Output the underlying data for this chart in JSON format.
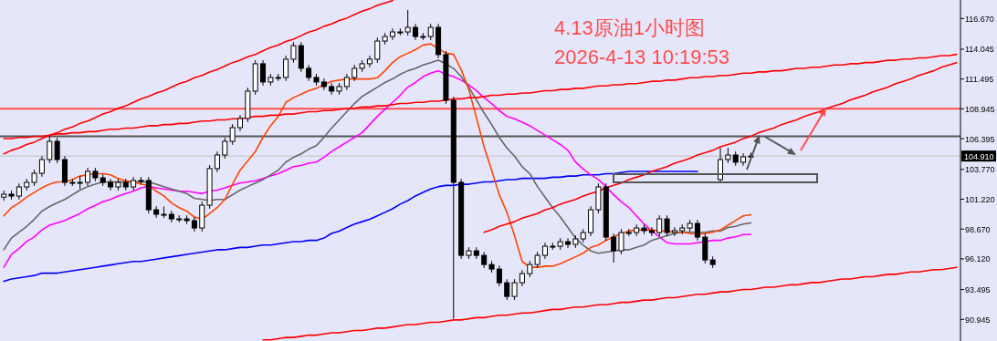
{
  "chart_data": {
    "type": "candlestick",
    "title": "4.13原油1小时图",
    "subtitle": "2026-4-13 10:19:53",
    "categories": [
      null,
      null,
      null,
      null,
      null,
      null,
      null,
      null,
      null,
      null,
      null,
      null,
      null,
      null,
      null,
      null,
      null,
      null,
      null,
      null,
      null,
      null,
      null,
      null,
      null,
      null,
      null,
      null,
      null,
      null,
      null,
      null,
      null,
      null,
      null,
      null,
      null,
      null,
      null,
      null,
      null,
      null,
      null,
      null,
      null,
      null,
      null,
      null,
      null,
      null,
      null,
      null,
      null,
      null,
      null,
      null,
      null,
      null,
      null,
      null,
      null,
      null,
      null,
      null,
      null,
      null,
      null,
      null,
      null,
      null,
      null,
      null,
      null,
      null,
      null,
      null,
      null,
      null,
      null,
      null,
      null,
      null,
      null,
      null,
      null,
      null,
      null,
      null,
      null,
      null,
      null,
      null,
      null,
      null,
      null,
      null,
      null,
      null,
      null,
      null,
      null,
      null,
      null,
      null,
      null,
      null,
      null,
      null,
      null,
      null,
      null,
      null,
      null,
      null,
      null,
      null,
      null,
      null,
      null,
      null,
      null,
      null,
      null,
      null,
      null,
      null
    ],
    "ohlc": [
      [
        101.4,
        101.95,
        101.1,
        101.65
      ],
      [
        101.65,
        101.95,
        101.19,
        101.49
      ],
      [
        101.49,
        102.57,
        101.19,
        102.27
      ],
      [
        102.27,
        102.96,
        101.97,
        102.66
      ],
      [
        102.66,
        103.74,
        102.36,
        103.44
      ],
      [
        103.44,
        104.91,
        103.14,
        104.61
      ],
      [
        104.61,
        106.6,
        104.31,
        106.17
      ],
      [
        106.17,
        106.47,
        104.31,
        104.61
      ],
      [
        104.61,
        104.91,
        102.36,
        102.66
      ],
      [
        102.66,
        102.96,
        102.36,
        102.66
      ],
      [
        102.66,
        103.2,
        102.1,
        102.66
      ],
      [
        102.66,
        103.9,
        102.36,
        103.6
      ],
      [
        103.6,
        103.9,
        102.75,
        103.05
      ],
      [
        103.05,
        103.35,
        102.36,
        102.66
      ],
      [
        102.66,
        102.96,
        101.97,
        102.27
      ],
      [
        102.27,
        102.96,
        101.97,
        102.66
      ],
      [
        102.66,
        102.96,
        101.97,
        102.27
      ],
      [
        102.27,
        103.12,
        101.97,
        102.82
      ],
      [
        102.82,
        103.12,
        102.52,
        102.82
      ],
      [
        102.82,
        103.12,
        100.02,
        100.32
      ],
      [
        100.32,
        100.62,
        99.63,
        99.93
      ],
      [
        99.93,
        100.6,
        99.63,
        99.93
      ],
      [
        99.93,
        100.23,
        99.24,
        99.54
      ],
      [
        99.54,
        99.84,
        99.24,
        99.54
      ],
      [
        99.54,
        99.84,
        99.09,
        99.39
      ],
      [
        99.39,
        99.69,
        98.46,
        98.76
      ],
      [
        98.76,
        101.01,
        98.46,
        100.71
      ],
      [
        100.71,
        104.14,
        100.41,
        103.84
      ],
      [
        103.84,
        105.3,
        103.54,
        105.0
      ],
      [
        105.0,
        106.47,
        104.7,
        106.17
      ],
      [
        106.17,
        107.64,
        105.87,
        107.34
      ],
      [
        107.34,
        108.42,
        107.04,
        108.12
      ],
      [
        108.12,
        110.76,
        107.82,
        110.46
      ],
      [
        110.46,
        113.1,
        110.16,
        112.8
      ],
      [
        112.8,
        113.1,
        110.94,
        111.24
      ],
      [
        111.24,
        111.93,
        110.94,
        111.63
      ],
      [
        111.63,
        111.93,
        111.33,
        111.63
      ],
      [
        111.63,
        113.49,
        111.33,
        113.19
      ],
      [
        113.19,
        114.65,
        112.89,
        114.35
      ],
      [
        114.35,
        114.65,
        112.11,
        112.41
      ],
      [
        112.41,
        112.71,
        111.33,
        111.63
      ],
      [
        111.63,
        111.93,
        110.94,
        111.24
      ],
      [
        111.24,
        111.54,
        110.55,
        110.85
      ],
      [
        110.85,
        111.15,
        110.16,
        110.46
      ],
      [
        110.46,
        111.15,
        110.16,
        110.85
      ],
      [
        110.85,
        111.93,
        110.55,
        111.63
      ],
      [
        111.63,
        112.71,
        111.33,
        112.41
      ],
      [
        112.41,
        113.1,
        112.11,
        112.8
      ],
      [
        112.8,
        113.49,
        112.5,
        113.19
      ],
      [
        113.19,
        115.04,
        112.89,
        114.74
      ],
      [
        114.74,
        115.43,
        114.44,
        115.13
      ],
      [
        115.13,
        115.82,
        114.83,
        115.52
      ],
      [
        115.52,
        115.82,
        115.22,
        115.52
      ],
      [
        115.52,
        117.4,
        115.22,
        115.91
      ],
      [
        115.91,
        116.21,
        114.83,
        115.13
      ],
      [
        115.13,
        115.43,
        114.83,
        115.13
      ],
      [
        115.13,
        116.21,
        114.83,
        115.91
      ],
      [
        115.91,
        116.21,
        113.28,
        113.58
      ],
      [
        113.58,
        113.88,
        109.38,
        109.68
      ],
      [
        109.68,
        109.98,
        91.0,
        102.66
      ],
      [
        102.66,
        102.96,
        96.12,
        96.42
      ],
      [
        96.42,
        97.11,
        96.12,
        96.81
      ],
      [
        96.81,
        97.11,
        96.12,
        96.42
      ],
      [
        96.42,
        96.72,
        95.34,
        95.64
      ],
      [
        95.64,
        95.94,
        94.95,
        95.25
      ],
      [
        95.25,
        95.55,
        93.78,
        94.08
      ],
      [
        94.08,
        94.38,
        92.61,
        92.91
      ],
      [
        92.91,
        94.38,
        92.61,
        94.08
      ],
      [
        94.08,
        95.16,
        93.78,
        94.86
      ],
      [
        94.86,
        95.94,
        94.56,
        95.64
      ],
      [
        95.64,
        96.72,
        95.34,
        96.42
      ],
      [
        96.42,
        97.5,
        96.12,
        97.2
      ],
      [
        97.2,
        97.5,
        96.9,
        97.2
      ],
      [
        97.2,
        97.89,
        96.9,
        97.59
      ],
      [
        97.59,
        97.89,
        97.06,
        97.36
      ],
      [
        97.36,
        98.13,
        97.06,
        97.83
      ],
      [
        97.83,
        98.67,
        97.53,
        98.37
      ],
      [
        98.37,
        100.62,
        98.07,
        100.32
      ],
      [
        100.32,
        102.57,
        100.02,
        102.27
      ],
      [
        102.27,
        102.57,
        97.68,
        97.98
      ],
      [
        97.98,
        98.28,
        95.8,
        96.81
      ],
      [
        96.81,
        98.67,
        96.51,
        98.37
      ],
      [
        98.37,
        98.67,
        98.07,
        98.37
      ],
      [
        98.37,
        99.06,
        98.07,
        98.76
      ],
      [
        98.76,
        99.06,
        98.23,
        98.53
      ],
      [
        98.53,
        98.83,
        98.07,
        98.37
      ],
      [
        98.37,
        99.84,
        98.07,
        99.54
      ],
      [
        99.54,
        99.84,
        98.07,
        98.37
      ],
      [
        98.37,
        98.83,
        98.07,
        98.53
      ],
      [
        98.53,
        99.06,
        98.23,
        98.76
      ],
      [
        98.76,
        99.45,
        98.46,
        99.15
      ],
      [
        99.15,
        99.45,
        97.68,
        97.98
      ],
      [
        97.98,
        98.28,
        95.73,
        96.03
      ],
      [
        96.03,
        96.33,
        95.34,
        95.64
      ],
      [
        102.9,
        105.6,
        102.6,
        104.61
      ],
      [
        104.61,
        105.6,
        104.31,
        105.0
      ],
      [
        105.0,
        105.3,
        104.08,
        104.38
      ],
      [
        104.38,
        105.15,
        104.08,
        104.85
      ],
      [
        104.85,
        105.21,
        104.61,
        104.91
      ],
      null,
      null,
      null,
      null,
      null,
      null,
      null,
      null,
      null,
      null,
      null,
      null,
      null,
      null,
      null,
      null,
      null,
      null,
      null,
      null,
      null,
      null,
      null,
      null,
      null,
      null,
      null
    ],
    "series": [
      {
        "type": "line",
        "color": "#0000ff",
        "values": [
          94.2,
          94.4,
          94.5,
          94.6,
          94.7,
          94.9,
          94.9,
          94.9,
          95.0,
          95.1,
          95.2,
          95.3,
          95.4,
          95.5,
          95.6,
          95.7,
          95.8,
          95.9,
          95.9,
          96.0,
          96.1,
          96.2,
          96.3,
          96.4,
          96.5,
          96.6,
          96.7,
          96.8,
          96.9,
          96.9,
          97.0,
          97.1,
          97.1,
          97.2,
          97.3,
          97.3,
          97.4,
          97.5,
          97.6,
          97.6,
          97.7,
          97.7,
          97.9,
          98.3,
          98.5,
          98.8,
          99.1,
          99.3,
          99.5,
          99.8,
          100.1,
          100.4,
          100.8,
          101.1,
          101.5,
          101.8,
          102.1,
          102.3,
          102.4,
          102.4,
          102.5,
          102.5,
          102.6,
          102.7,
          102.7,
          102.8,
          102.9,
          102.9,
          103.0,
          103.0,
          103.0,
          103.0,
          103.1,
          103.1,
          103.2,
          103.2,
          103.3,
          103.3,
          103.3,
          103.4,
          103.4,
          103.5,
          103.6,
          103.6,
          103.6,
          103.6,
          103.6,
          103.6,
          103.6,
          103.6,
          103.6,
          103.6,
          null,
          null,
          null,
          null,
          null,
          null,
          null,
          null,
          null,
          null,
          null,
          null,
          null,
          null,
          null,
          null,
          null,
          null,
          null,
          null,
          null,
          null,
          null,
          null,
          null,
          null,
          null,
          null,
          null,
          null,
          null,
          null,
          null,
          null
        ]
      },
      {
        "type": "line",
        "color": "#ff00ff",
        "values": [
          95.4,
          96.5,
          97.0,
          97.6,
          98.0,
          98.6,
          99.0,
          99.2,
          99.4,
          99.7,
          100.0,
          100.4,
          100.7,
          101.0,
          101.2,
          101.5,
          101.7,
          101.9,
          102.2,
          102.3,
          102.2,
          102.1,
          102.0,
          101.9,
          101.9,
          101.8,
          101.7,
          101.9,
          102.0,
          102.2,
          102.4,
          102.6,
          102.7,
          102.8,
          103.0,
          103.2,
          103.4,
          103.7,
          104.0,
          104.1,
          104.3,
          104.4,
          104.8,
          105.3,
          105.7,
          106.1,
          106.5,
          106.9,
          107.6,
          108.3,
          108.9,
          109.5,
          110.1,
          110.8,
          111.2,
          111.7,
          112.0,
          112.2,
          111.9,
          111.7,
          111.4,
          111.0,
          110.5,
          109.9,
          109.4,
          108.8,
          108.3,
          108.1,
          107.8,
          107.5,
          107.1,
          106.7,
          106.3,
          105.9,
          105.4,
          104.4,
          103.8,
          103.3,
          102.9,
          102.3,
          101.6,
          101.0,
          100.5,
          99.8,
          99.1,
          98.5,
          98.0,
          97.5,
          97.4,
          97.4,
          97.4,
          97.5,
          97.6,
          97.7,
          97.7,
          97.9,
          98.0,
          98.2,
          98.2,
          null,
          null,
          null,
          null,
          null,
          null,
          null,
          null,
          null,
          null,
          null,
          null,
          null,
          null,
          null,
          null,
          null,
          null,
          null,
          null,
          null,
          null,
          null,
          null,
          null,
          null,
          null
        ]
      },
      {
        "type": "line",
        "color": "#666666",
        "values": [
          96.9,
          97.9,
          98.4,
          98.9,
          99.5,
          100.2,
          100.6,
          100.9,
          101.2,
          101.6,
          102.0,
          102.3,
          102.5,
          102.7,
          102.7,
          102.7,
          102.7,
          102.7,
          102.7,
          102.7,
          102.5,
          102.3,
          102.1,
          101.9,
          101.7,
          101.3,
          101.2,
          101.1,
          101.2,
          101.2,
          101.6,
          102.0,
          102.3,
          102.6,
          102.9,
          103.3,
          103.7,
          104.4,
          104.8,
          105.1,
          105.5,
          105.8,
          106.5,
          107.3,
          108.0,
          108.7,
          109.4,
          110.0,
          110.4,
          110.8,
          111.2,
          111.5,
          111.9,
          112.2,
          112.4,
          112.7,
          112.9,
          113.1,
          112.8,
          112.4,
          111.7,
          110.8,
          109.7,
          108.6,
          107.6,
          106.5,
          105.6,
          104.9,
          104.0,
          103.4,
          102.3,
          101.4,
          100.5,
          99.7,
          98.8,
          97.9,
          97.3,
          96.8,
          96.6,
          96.7,
          96.8,
          96.9,
          96.9,
          97.1,
          97.3,
          97.7,
          97.9,
          98.1,
          98.3,
          98.4,
          98.4,
          98.4,
          98.4,
          98.5,
          98.5,
          98.8,
          98.9,
          99.1,
          99.2,
          null,
          null,
          null,
          null,
          null,
          null,
          null,
          null,
          null,
          null,
          null,
          null,
          null,
          null,
          null,
          null,
          null,
          null,
          null,
          null,
          null,
          null,
          null,
          null,
          null,
          null,
          null
        ]
      },
      {
        "type": "line",
        "color": "#ff4500",
        "values": [
          99.8,
          100.5,
          100.9,
          101.4,
          101.8,
          102.2,
          102.5,
          102.7,
          102.7,
          102.9,
          103.2,
          103.3,
          103.4,
          103.4,
          103.3,
          103.0,
          102.8,
          102.7,
          102.5,
          102.4,
          101.9,
          101.5,
          100.9,
          100.5,
          100.2,
          99.7,
          99.5,
          100.0,
          100.5,
          101.2,
          102.5,
          103.7,
          104.5,
          105.3,
          106.5,
          107.5,
          108.3,
          109.5,
          109.9,
          110.2,
          110.5,
          110.7,
          111.0,
          111.3,
          111.4,
          111.5,
          111.5,
          111.5,
          111.5,
          111.6,
          112.2,
          112.9,
          113.4,
          113.7,
          114.0,
          114.4,
          114.5,
          114.1,
          113.7,
          113.6,
          112.3,
          110.6,
          108.2,
          105.7,
          103.7,
          101.6,
          100.1,
          98.1,
          95.9,
          95.4,
          95.4,
          95.5,
          95.5,
          95.7,
          96.0,
          96.3,
          96.6,
          97.1,
          97.3,
          97.7,
          98.0,
          98.3,
          98.5,
          98.6,
          98.6,
          98.6,
          98.5,
          98.5,
          98.4,
          98.4,
          98.3,
          98.2,
          98.3,
          98.4,
          98.6,
          99.0,
          99.4,
          99.8,
          99.9,
          null,
          null,
          null,
          null,
          null,
          null,
          null,
          null,
          null,
          null,
          null,
          null,
          null,
          null,
          null,
          null,
          null,
          null,
          null,
          null,
          null,
          null,
          null,
          null,
          null,
          null,
          null
        ]
      },
      {
        "type": "line",
        "color": "#ff0000",
        "values": [
          105.1,
          105.4,
          105.6,
          105.9,
          106.1,
          106.4,
          106.7,
          106.9,
          107.2,
          107.4,
          107.7,
          107.9,
          108.2,
          108.5,
          108.7,
          109.0,
          109.2,
          109.5,
          109.8,
          110.0,
          110.3,
          110.5,
          110.8,
          111.1,
          111.3,
          111.6,
          111.8,
          112.1,
          112.3,
          112.6,
          112.9,
          113.1,
          113.4,
          113.6,
          113.9,
          114.2,
          114.4,
          114.7,
          114.9,
          115.2,
          115.5,
          115.7,
          116.0,
          116.2,
          116.5,
          116.7,
          117.0,
          117.3,
          117.5,
          117.8,
          118.0,
          118.2,
          null,
          null,
          null,
          null,
          null,
          null,
          null,
          null,
          null,
          null,
          null,
          null,
          null,
          null,
          null,
          null,
          null,
          null,
          null,
          null,
          null,
          null,
          null,
          null,
          null,
          null,
          null,
          null,
          null,
          null,
          null,
          null,
          null,
          null,
          null,
          null,
          null,
          null,
          null,
          null,
          null,
          null,
          null,
          null,
          null,
          null,
          null,
          null,
          null,
          null,
          null,
          null,
          null,
          null,
          null,
          null,
          null,
          null,
          null,
          null,
          null,
          null,
          null,
          null,
          null,
          null,
          null,
          null,
          null,
          null,
          null,
          null,
          null,
          null
        ]
      },
      {
        "type": "line",
        "color": "#ff0000",
        "values": [
          106.4,
          106.4,
          106.5,
          106.5,
          106.6,
          106.6,
          106.7,
          106.8,
          106.8,
          106.9,
          106.9,
          107.0,
          107.0,
          107.1,
          107.2,
          107.2,
          107.3,
          107.3,
          107.4,
          107.5,
          107.5,
          107.6,
          107.6,
          107.7,
          107.7,
          107.8,
          107.9,
          107.9,
          108.0,
          108.0,
          108.1,
          108.1,
          108.2,
          108.3,
          108.3,
          108.4,
          108.4,
          108.5,
          108.5,
          108.6,
          108.7,
          108.7,
          108.8,
          108.8,
          108.9,
          109.0,
          109.0,
          109.1,
          109.1,
          109.2,
          109.2,
          109.3,
          109.4,
          109.4,
          109.5,
          109.5,
          109.6,
          109.6,
          109.7,
          109.8,
          109.8,
          109.9,
          109.9,
          110.0,
          110.1,
          110.1,
          110.2,
          110.2,
          110.3,
          110.3,
          110.4,
          110.5,
          110.5,
          110.6,
          110.6,
          110.7,
          110.7,
          110.8,
          110.9,
          110.9,
          111.0,
          111.0,
          111.1,
          111.1,
          111.2,
          111.3,
          111.3,
          111.4,
          111.4,
          111.5,
          111.6,
          111.6,
          111.7,
          111.7,
          111.8,
          111.8,
          111.9,
          112.0,
          112.0,
          112.1,
          112.1,
          112.2,
          112.2,
          112.3,
          112.4,
          112.4,
          112.5,
          112.5,
          112.6,
          112.7,
          112.7,
          112.8,
          112.8,
          112.9,
          112.9,
          113.0,
          113.1,
          113.1,
          113.2,
          113.2,
          113.3,
          113.3,
          113.4,
          113.5,
          113.5,
          113.6
        ]
      },
      {
        "type": "line",
        "color": "#ff0000",
        "values": [
          null,
          null,
          null,
          null,
          null,
          null,
          null,
          null,
          null,
          null,
          null,
          null,
          null,
          null,
          null,
          null,
          null,
          null,
          null,
          null,
          null,
          null,
          null,
          null,
          null,
          null,
          null,
          null,
          null,
          null,
          null,
          null,
          null,
          null,
          89.2,
          89.2,
          89.3,
          89.4,
          89.4,
          89.5,
          89.6,
          89.6,
          89.7,
          89.8,
          89.8,
          89.9,
          90.0,
          90.0,
          90.1,
          90.2,
          90.2,
          90.3,
          90.4,
          90.5,
          90.5,
          90.6,
          90.7,
          90.7,
          90.8,
          90.9,
          90.9,
          91.0,
          91.1,
          91.1,
          91.2,
          91.3,
          91.3,
          91.4,
          91.5,
          91.5,
          91.6,
          91.7,
          91.8,
          91.8,
          91.9,
          92.0,
          92.0,
          92.1,
          92.2,
          92.2,
          92.3,
          92.4,
          92.4,
          92.5,
          92.6,
          92.6,
          92.7,
          92.8,
          92.8,
          92.9,
          93.0,
          93.1,
          93.1,
          93.2,
          93.3,
          93.3,
          93.4,
          93.5,
          93.5,
          93.6,
          93.7,
          93.7,
          93.8,
          93.9,
          93.9,
          94.0,
          94.1,
          94.1,
          94.2,
          94.3,
          94.4,
          94.4,
          94.5,
          94.6,
          94.6,
          94.7,
          94.8,
          94.8,
          94.9,
          95.0,
          95.0,
          95.1,
          95.2,
          95.2,
          95.3,
          95.4
        ]
      },
      {
        "type": "line",
        "color": "#ff0000",
        "values": [
          null,
          null,
          null,
          null,
          null,
          null,
          null,
          null,
          null,
          null,
          null,
          null,
          null,
          null,
          null,
          null,
          null,
          null,
          null,
          null,
          null,
          null,
          null,
          null,
          null,
          null,
          null,
          null,
          null,
          null,
          null,
          null,
          null,
          null,
          null,
          null,
          null,
          null,
          null,
          null,
          null,
          null,
          null,
          null,
          null,
          null,
          null,
          null,
          null,
          null,
          null,
          null,
          null,
          null,
          null,
          null,
          null,
          null,
          null,
          null,
          null,
          null,
          null,
          98.4,
          98.6,
          98.9,
          99.1,
          99.3,
          99.6,
          99.8,
          100.0,
          100.3,
          100.5,
          100.8,
          101.0,
          101.2,
          101.5,
          101.7,
          101.9,
          102.2,
          102.4,
          102.6,
          102.9,
          103.1,
          103.3,
          103.6,
          103.8,
          104.0,
          104.3,
          104.5,
          104.7,
          105.0,
          105.2,
          105.4,
          105.7,
          105.9,
          106.1,
          106.4,
          106.6,
          106.9,
          107.1,
          107.3,
          107.6,
          107.8,
          108.0,
          108.3,
          108.5,
          108.7,
          109.0,
          109.2,
          109.4,
          109.7,
          109.9,
          110.1,
          110.4,
          110.6,
          110.8,
          111.1,
          111.3,
          111.5,
          111.8,
          112.0,
          112.2,
          112.5,
          112.7,
          112.9
        ]
      }
    ],
    "ref_lines": [
      {
        "axis": "y",
        "value": 108.95,
        "color": "#ff4d4d"
      },
      {
        "axis": "y",
        "value": 106.6,
        "color": "#555555"
      },
      {
        "axis": "y",
        "value": 104.91,
        "label": "104.910",
        "color": "#c0c0c0"
      }
    ],
    "ylim": [
      89.1,
      118.25
    ],
    "yticks": [
      {
        "value": 116.67,
        "label": "116.670"
      },
      {
        "value": 114.045,
        "label": "114.045"
      },
      {
        "value": 111.495,
        "label": "111.495"
      },
      {
        "value": 108.945,
        "label": "108.945"
      },
      {
        "value": 106.395,
        "label": "106.395"
      },
      {
        "value": 103.77,
        "label": "103.770"
      },
      {
        "value": 101.22,
        "label": "101.220"
      },
      {
        "value": 98.67,
        "label": "98.670"
      },
      {
        "value": 96.12,
        "label": "96.120"
      },
      {
        "value": 93.495,
        "label": "93.495"
      },
      {
        "value": 90.945,
        "label": "90.945"
      }
    ],
    "tick_labels": "y"
  }
}
